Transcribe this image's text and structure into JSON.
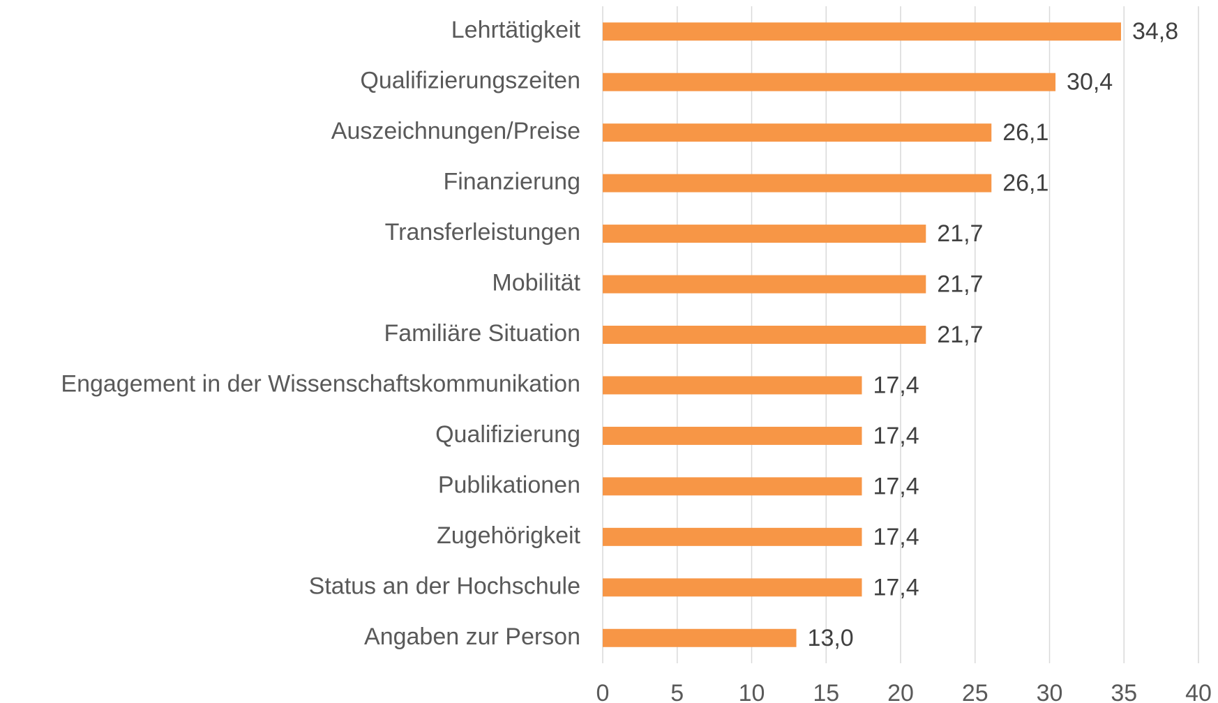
{
  "chart_data": {
    "type": "barh",
    "categories": [
      "Lehrtätigkeit",
      "Qualifizierungszeiten",
      "Auszeichnungen/Preise",
      "Finanzierung",
      "Transferleistungen",
      "Mobilität",
      "Familiäre Situation",
      "Engagement in der Wissenschaftskommunikation",
      "Qualifizierung",
      "Publikationen",
      "Zugehörigkeit",
      "Status an der Hochschule",
      "Angaben zur Person"
    ],
    "values": [
      34.8,
      30.4,
      26.1,
      26.1,
      21.7,
      21.7,
      21.7,
      17.4,
      17.4,
      17.4,
      17.4,
      17.4,
      13.0
    ],
    "value_labels": [
      "34,8",
      "30,4",
      "26,1",
      "26,1",
      "21,7",
      "21,7",
      "21,7",
      "17,4",
      "17,4",
      "17,4",
      "17,4",
      "17,4",
      "13,0"
    ],
    "color": "#f79646",
    "xlim": [
      0,
      40
    ],
    "xticks": [
      0,
      5,
      10,
      15,
      20,
      25,
      30,
      35,
      40
    ],
    "grid": true
  }
}
